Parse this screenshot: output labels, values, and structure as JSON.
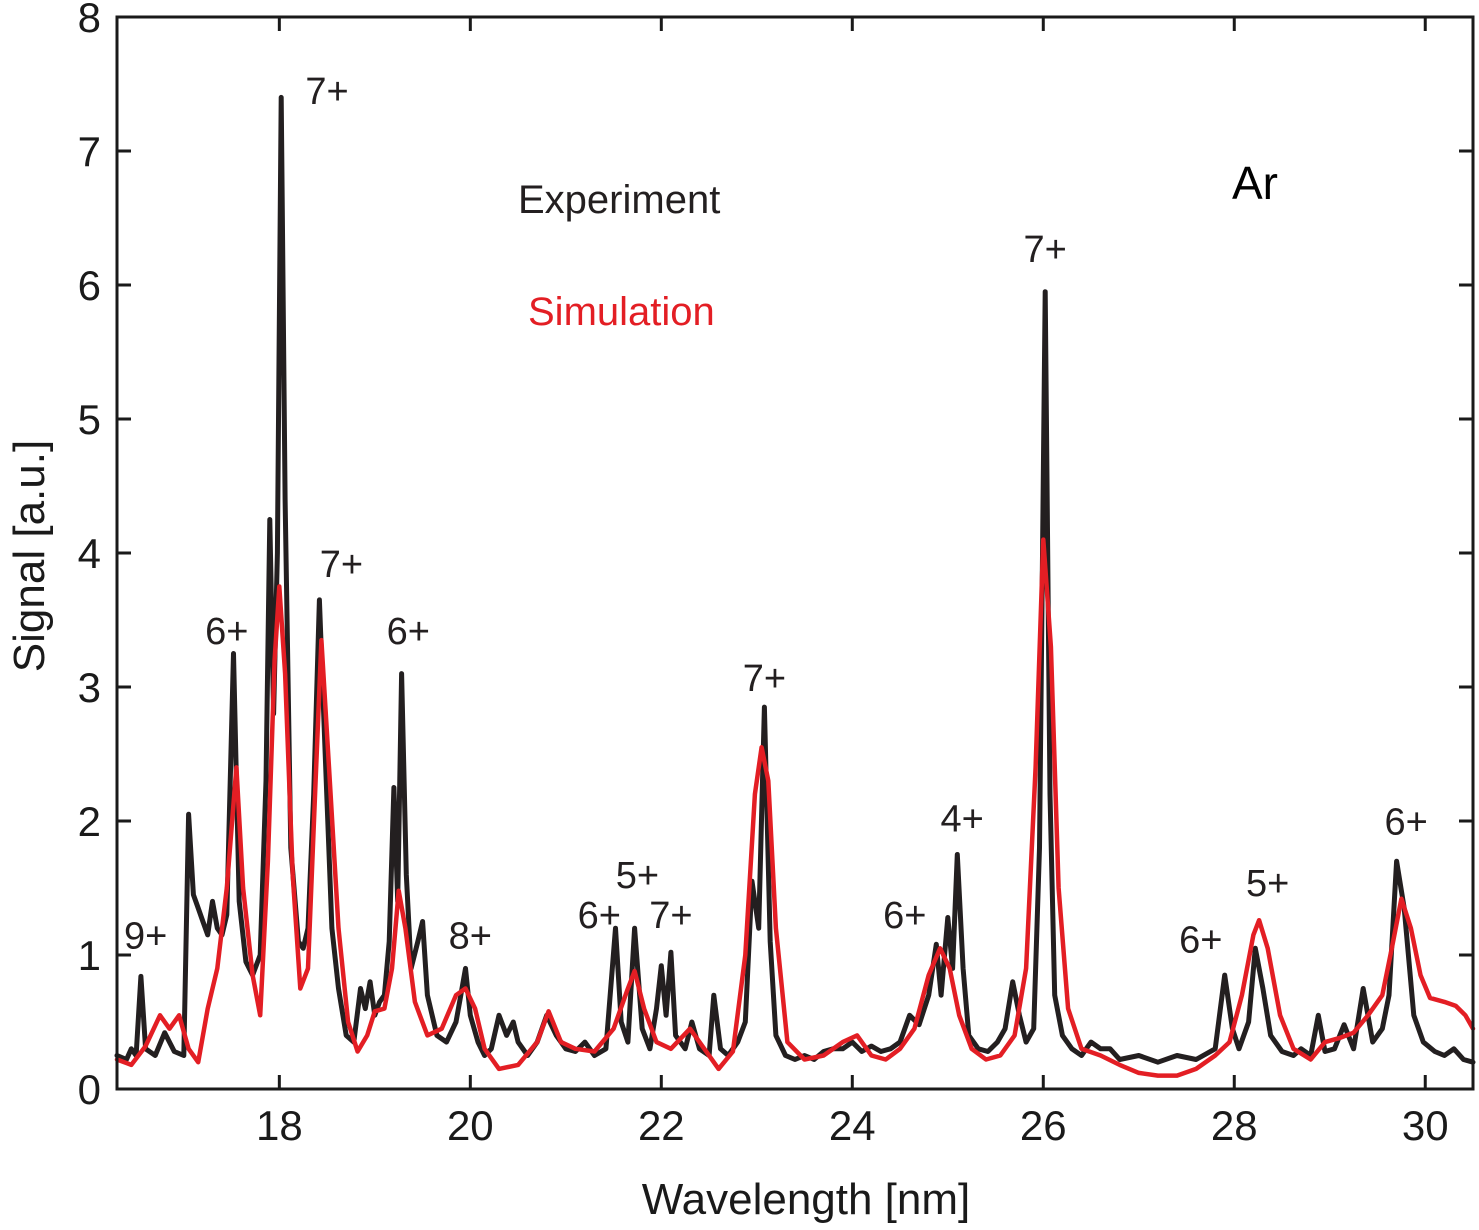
{
  "chart_data": {
    "type": "line",
    "title": "",
    "xlabel": "Wavelength [nm]",
    "ylabel": "Signal [a.u.]",
    "xlim": [
      16.3,
      30.5
    ],
    "ylim": [
      0,
      8
    ],
    "xticks": [
      18,
      20,
      22,
      24,
      26,
      28,
      30
    ],
    "yticks": [
      0,
      1,
      2,
      3,
      4,
      5,
      6,
      7,
      8
    ],
    "element_label": "Ar",
    "legend": [
      {
        "name": "Experiment",
        "color": "#231f20"
      },
      {
        "name": "Simulation",
        "color": "#e31e24"
      }
    ],
    "series": [
      {
        "name": "Experiment",
        "color": "#231f20",
        "points": [
          [
            16.3,
            0.25
          ],
          [
            16.4,
            0.22
          ],
          [
            16.45,
            0.3
          ],
          [
            16.5,
            0.25
          ],
          [
            16.55,
            0.84
          ],
          [
            16.6,
            0.3
          ],
          [
            16.7,
            0.25
          ],
          [
            16.8,
            0.42
          ],
          [
            16.9,
            0.28
          ],
          [
            17.0,
            0.25
          ],
          [
            17.05,
            2.05
          ],
          [
            17.1,
            1.45
          ],
          [
            17.15,
            1.35
          ],
          [
            17.2,
            1.25
          ],
          [
            17.25,
            1.15
          ],
          [
            17.3,
            1.4
          ],
          [
            17.35,
            1.2
          ],
          [
            17.4,
            1.15
          ],
          [
            17.45,
            1.3
          ],
          [
            17.52,
            3.25
          ],
          [
            17.58,
            1.4
          ],
          [
            17.65,
            0.95
          ],
          [
            17.72,
            0.85
          ],
          [
            17.8,
            1.0
          ],
          [
            17.86,
            2.3
          ],
          [
            17.9,
            4.25
          ],
          [
            17.94,
            2.8
          ],
          [
            17.98,
            4.0
          ],
          [
            18.02,
            7.4
          ],
          [
            18.06,
            4.4
          ],
          [
            18.12,
            1.8
          ],
          [
            18.2,
            1.1
          ],
          [
            18.25,
            1.05
          ],
          [
            18.3,
            1.2
          ],
          [
            18.36,
            2.2
          ],
          [
            18.42,
            3.65
          ],
          [
            18.48,
            2.5
          ],
          [
            18.55,
            1.2
          ],
          [
            18.62,
            0.75
          ],
          [
            18.7,
            0.4
          ],
          [
            18.78,
            0.35
          ],
          [
            18.85,
            0.75
          ],
          [
            18.9,
            0.6
          ],
          [
            18.95,
            0.8
          ],
          [
            19.0,
            0.55
          ],
          [
            19.05,
            0.65
          ],
          [
            19.1,
            0.7
          ],
          [
            19.15,
            1.1
          ],
          [
            19.2,
            2.25
          ],
          [
            19.24,
            1.4
          ],
          [
            19.28,
            3.1
          ],
          [
            19.33,
            1.6
          ],
          [
            19.38,
            0.9
          ],
          [
            19.45,
            1.1
          ],
          [
            19.5,
            1.25
          ],
          [
            19.55,
            0.7
          ],
          [
            19.65,
            0.4
          ],
          [
            19.75,
            0.35
          ],
          [
            19.85,
            0.5
          ],
          [
            19.9,
            0.7
          ],
          [
            19.95,
            0.9
          ],
          [
            20.0,
            0.55
          ],
          [
            20.08,
            0.35
          ],
          [
            20.15,
            0.25
          ],
          [
            20.22,
            0.3
          ],
          [
            20.3,
            0.55
          ],
          [
            20.38,
            0.4
          ],
          [
            20.45,
            0.5
          ],
          [
            20.5,
            0.35
          ],
          [
            20.6,
            0.25
          ],
          [
            20.7,
            0.35
          ],
          [
            20.8,
            0.55
          ],
          [
            20.9,
            0.4
          ],
          [
            21.0,
            0.3
          ],
          [
            21.1,
            0.28
          ],
          [
            21.2,
            0.35
          ],
          [
            21.3,
            0.25
          ],
          [
            21.42,
            0.3
          ],
          [
            21.52,
            1.2
          ],
          [
            21.58,
            0.5
          ],
          [
            21.65,
            0.35
          ],
          [
            21.72,
            1.2
          ],
          [
            21.8,
            0.45
          ],
          [
            21.88,
            0.3
          ],
          [
            21.95,
            0.6
          ],
          [
            22.0,
            0.92
          ],
          [
            22.05,
            0.55
          ],
          [
            22.1,
            1.02
          ],
          [
            22.15,
            0.4
          ],
          [
            22.25,
            0.3
          ],
          [
            22.32,
            0.5
          ],
          [
            22.4,
            0.3
          ],
          [
            22.5,
            0.25
          ],
          [
            22.55,
            0.7
          ],
          [
            22.62,
            0.3
          ],
          [
            22.7,
            0.25
          ],
          [
            22.8,
            0.35
          ],
          [
            22.88,
            0.5
          ],
          [
            22.95,
            1.55
          ],
          [
            23.02,
            1.2
          ],
          [
            23.08,
            2.85
          ],
          [
            23.14,
            1.1
          ],
          [
            23.2,
            0.4
          ],
          [
            23.3,
            0.25
          ],
          [
            23.4,
            0.22
          ],
          [
            23.5,
            0.25
          ],
          [
            23.6,
            0.22
          ],
          [
            23.7,
            0.28
          ],
          [
            23.8,
            0.3
          ],
          [
            23.9,
            0.3
          ],
          [
            24.0,
            0.35
          ],
          [
            24.1,
            0.28
          ],
          [
            24.2,
            0.32
          ],
          [
            24.3,
            0.28
          ],
          [
            24.4,
            0.3
          ],
          [
            24.5,
            0.35
          ],
          [
            24.6,
            0.55
          ],
          [
            24.7,
            0.48
          ],
          [
            24.8,
            0.7
          ],
          [
            24.88,
            1.08
          ],
          [
            24.93,
            0.7
          ],
          [
            25.0,
            1.28
          ],
          [
            25.05,
            0.9
          ],
          [
            25.1,
            1.75
          ],
          [
            25.16,
            0.9
          ],
          [
            25.22,
            0.4
          ],
          [
            25.32,
            0.3
          ],
          [
            25.42,
            0.28
          ],
          [
            25.52,
            0.35
          ],
          [
            25.6,
            0.45
          ],
          [
            25.68,
            0.8
          ],
          [
            25.75,
            0.55
          ],
          [
            25.82,
            0.35
          ],
          [
            25.9,
            0.45
          ],
          [
            25.96,
            1.8
          ],
          [
            26.02,
            5.95
          ],
          [
            26.07,
            2.2
          ],
          [
            26.12,
            0.7
          ],
          [
            26.2,
            0.4
          ],
          [
            26.3,
            0.3
          ],
          [
            26.4,
            0.25
          ],
          [
            26.5,
            0.35
          ],
          [
            26.6,
            0.3
          ],
          [
            26.7,
            0.3
          ],
          [
            26.8,
            0.22
          ],
          [
            27.0,
            0.25
          ],
          [
            27.2,
            0.2
          ],
          [
            27.4,
            0.25
          ],
          [
            27.6,
            0.22
          ],
          [
            27.8,
            0.3
          ],
          [
            27.9,
            0.85
          ],
          [
            27.98,
            0.45
          ],
          [
            28.05,
            0.3
          ],
          [
            28.15,
            0.5
          ],
          [
            28.22,
            1.05
          ],
          [
            28.3,
            0.75
          ],
          [
            28.38,
            0.4
          ],
          [
            28.5,
            0.28
          ],
          [
            28.62,
            0.25
          ],
          [
            28.7,
            0.3
          ],
          [
            28.8,
            0.25
          ],
          [
            28.88,
            0.55
          ],
          [
            28.95,
            0.28
          ],
          [
            29.05,
            0.3
          ],
          [
            29.15,
            0.48
          ],
          [
            29.25,
            0.3
          ],
          [
            29.35,
            0.75
          ],
          [
            29.45,
            0.35
          ],
          [
            29.55,
            0.45
          ],
          [
            29.62,
            0.7
          ],
          [
            29.7,
            1.7
          ],
          [
            29.78,
            1.35
          ],
          [
            29.88,
            0.55
          ],
          [
            29.98,
            0.35
          ],
          [
            30.1,
            0.28
          ],
          [
            30.2,
            0.25
          ],
          [
            30.3,
            0.3
          ],
          [
            30.4,
            0.22
          ],
          [
            30.5,
            0.2
          ]
        ]
      },
      {
        "name": "Simulation",
        "color": "#e31e24",
        "points": [
          [
            16.3,
            0.22
          ],
          [
            16.45,
            0.18
          ],
          [
            16.6,
            0.32
          ],
          [
            16.75,
            0.55
          ],
          [
            16.85,
            0.45
          ],
          [
            16.95,
            0.55
          ],
          [
            17.05,
            0.3
          ],
          [
            17.15,
            0.2
          ],
          [
            17.25,
            0.6
          ],
          [
            17.35,
            0.9
          ],
          [
            17.45,
            1.5
          ],
          [
            17.55,
            2.4
          ],
          [
            17.62,
            1.5
          ],
          [
            17.72,
            0.85
          ],
          [
            17.8,
            0.55
          ],
          [
            17.88,
            1.7
          ],
          [
            17.95,
            3.2
          ],
          [
            18.0,
            3.75
          ],
          [
            18.06,
            3.1
          ],
          [
            18.14,
            1.6
          ],
          [
            18.22,
            0.75
          ],
          [
            18.3,
            0.9
          ],
          [
            18.38,
            2.3
          ],
          [
            18.44,
            3.35
          ],
          [
            18.52,
            2.4
          ],
          [
            18.62,
            1.2
          ],
          [
            18.72,
            0.5
          ],
          [
            18.82,
            0.28
          ],
          [
            18.92,
            0.4
          ],
          [
            19.0,
            0.58
          ],
          [
            19.1,
            0.6
          ],
          [
            19.18,
            0.9
          ],
          [
            19.25,
            1.48
          ],
          [
            19.32,
            1.2
          ],
          [
            19.42,
            0.65
          ],
          [
            19.55,
            0.4
          ],
          [
            19.7,
            0.45
          ],
          [
            19.85,
            0.7
          ],
          [
            19.95,
            0.75
          ],
          [
            20.05,
            0.6
          ],
          [
            20.15,
            0.3
          ],
          [
            20.3,
            0.15
          ],
          [
            20.5,
            0.18
          ],
          [
            20.7,
            0.35
          ],
          [
            20.82,
            0.58
          ],
          [
            20.95,
            0.35
          ],
          [
            21.1,
            0.3
          ],
          [
            21.3,
            0.28
          ],
          [
            21.5,
            0.45
          ],
          [
            21.65,
            0.75
          ],
          [
            21.72,
            0.88
          ],
          [
            21.82,
            0.6
          ],
          [
            21.95,
            0.35
          ],
          [
            22.1,
            0.3
          ],
          [
            22.3,
            0.45
          ],
          [
            22.45,
            0.3
          ],
          [
            22.6,
            0.15
          ],
          [
            22.75,
            0.28
          ],
          [
            22.88,
            1.0
          ],
          [
            22.98,
            2.2
          ],
          [
            23.05,
            2.55
          ],
          [
            23.12,
            2.3
          ],
          [
            23.2,
            1.2
          ],
          [
            23.32,
            0.35
          ],
          [
            23.5,
            0.22
          ],
          [
            23.7,
            0.25
          ],
          [
            23.9,
            0.35
          ],
          [
            24.05,
            0.4
          ],
          [
            24.2,
            0.25
          ],
          [
            24.35,
            0.22
          ],
          [
            24.5,
            0.3
          ],
          [
            24.65,
            0.45
          ],
          [
            24.8,
            0.85
          ],
          [
            24.92,
            1.05
          ],
          [
            25.02,
            0.9
          ],
          [
            25.12,
            0.55
          ],
          [
            25.25,
            0.3
          ],
          [
            25.4,
            0.22
          ],
          [
            25.55,
            0.25
          ],
          [
            25.7,
            0.4
          ],
          [
            25.82,
            0.9
          ],
          [
            25.92,
            2.4
          ],
          [
            26.0,
            4.1
          ],
          [
            26.08,
            3.3
          ],
          [
            26.16,
            1.5
          ],
          [
            26.26,
            0.6
          ],
          [
            26.4,
            0.3
          ],
          [
            26.6,
            0.25
          ],
          [
            26.8,
            0.18
          ],
          [
            27.0,
            0.12
          ],
          [
            27.2,
            0.1
          ],
          [
            27.4,
            0.1
          ],
          [
            27.6,
            0.15
          ],
          [
            27.8,
            0.25
          ],
          [
            27.95,
            0.35
          ],
          [
            28.08,
            0.7
          ],
          [
            28.2,
            1.15
          ],
          [
            28.26,
            1.26
          ],
          [
            28.35,
            1.05
          ],
          [
            28.48,
            0.55
          ],
          [
            28.62,
            0.3
          ],
          [
            28.8,
            0.22
          ],
          [
            28.95,
            0.35
          ],
          [
            29.1,
            0.38
          ],
          [
            29.25,
            0.42
          ],
          [
            29.4,
            0.55
          ],
          [
            29.55,
            0.7
          ],
          [
            29.65,
            1.05
          ],
          [
            29.75,
            1.42
          ],
          [
            29.85,
            1.2
          ],
          [
            29.95,
            0.85
          ],
          [
            30.05,
            0.68
          ],
          [
            30.2,
            0.65
          ],
          [
            30.32,
            0.62
          ],
          [
            30.42,
            0.55
          ],
          [
            30.5,
            0.45
          ]
        ]
      }
    ],
    "annotations": [
      {
        "text": "9+",
        "x": 16.6,
        "y": 1.05
      },
      {
        "text": "6+",
        "x": 17.45,
        "y": 3.32
      },
      {
        "text": "7+",
        "x": 18.5,
        "y": 7.35
      },
      {
        "text": "7+",
        "x": 18.65,
        "y": 3.82
      },
      {
        "text": "6+",
        "x": 19.35,
        "y": 3.32
      },
      {
        "text": "8+",
        "x": 20.0,
        "y": 1.05
      },
      {
        "text": "6+",
        "x": 21.35,
        "y": 1.2
      },
      {
        "text": "5+",
        "x": 21.75,
        "y": 1.5
      },
      {
        "text": "7+",
        "x": 22.1,
        "y": 1.2
      },
      {
        "text": "7+",
        "x": 23.08,
        "y": 2.97
      },
      {
        "text": "4+",
        "x": 25.15,
        "y": 1.92
      },
      {
        "text": "6+",
        "x": 24.55,
        "y": 1.2
      },
      {
        "text": "7+",
        "x": 26.02,
        "y": 6.17
      },
      {
        "text": "6+",
        "x": 27.65,
        "y": 1.02
      },
      {
        "text": "5+",
        "x": 28.35,
        "y": 1.44
      },
      {
        "text": "6+",
        "x": 29.8,
        "y": 1.9
      }
    ]
  }
}
